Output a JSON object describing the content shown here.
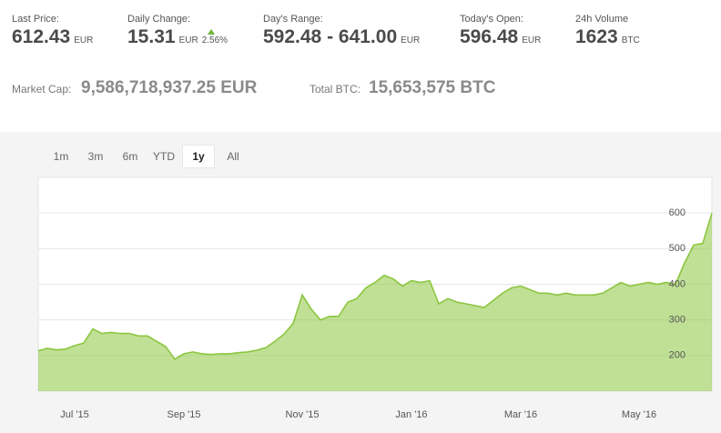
{
  "stats": [
    {
      "label": "Last Price:",
      "value": "612.43",
      "unit": "EUR"
    },
    {
      "label": "Daily Change:",
      "value": "15.31",
      "unit": "EUR",
      "change": "2.56%"
    },
    {
      "label": "Day's Range:",
      "value": "592.48 - 641.00",
      "unit": "EUR"
    },
    {
      "label": "Today's Open:",
      "value": "596.48",
      "unit": "EUR"
    },
    {
      "label": "24h Volume",
      "value": "1623",
      "unit": "BTC"
    }
  ],
  "summary": [
    {
      "label": "Market Cap:",
      "value": "9,586,718,937.25 EUR"
    },
    {
      "label": "Total BTC:",
      "value": "15,653,575 BTC"
    }
  ],
  "ranges": [
    "1m",
    "3m",
    "6m",
    "YTD",
    "1y",
    "All"
  ],
  "selected_range": 4,
  "chart_data": {
    "type": "area",
    "color": "#8cc63f",
    "categories": [
      null,
      null,
      null,
      null,
      "Jul '15",
      null,
      null,
      null,
      null,
      null,
      null,
      null,
      null,
      null,
      null,
      null,
      "Sep '15",
      null,
      null,
      null,
      null,
      null,
      null,
      null,
      null,
      null,
      null,
      null,
      null,
      "Nov '15",
      null,
      null,
      null,
      null,
      null,
      null,
      null,
      null,
      null,
      null,
      null,
      "Jan '16",
      null,
      null,
      null,
      null,
      null,
      null,
      null,
      null,
      null,
      null,
      null,
      "Mar '16",
      null,
      null,
      null,
      null,
      null,
      null,
      null,
      null,
      null,
      null,
      null,
      null,
      "May '16",
      null,
      null,
      null,
      null,
      null,
      null,
      null,
      null
    ],
    "values": [
      213,
      220,
      216,
      218,
      228,
      235,
      275,
      262,
      265,
      262,
      262,
      255,
      255,
      240,
      225,
      190,
      205,
      210,
      205,
      203,
      205,
      205,
      208,
      210,
      215,
      222,
      240,
      260,
      290,
      370,
      330,
      300,
      310,
      310,
      350,
      360,
      390,
      405,
      425,
      415,
      395,
      410,
      405,
      410,
      345,
      360,
      350,
      345,
      340,
      335,
      355,
      375,
      390,
      395,
      385,
      375,
      375,
      370,
      375,
      370,
      370,
      370,
      375,
      390,
      405,
      395,
      400,
      405,
      400,
      405,
      400,
      460,
      510,
      515,
      600
    ],
    "ylim": [
      100,
      700
    ],
    "yticks": [
      200,
      300,
      400,
      500,
      600
    ],
    "grid": true
  }
}
